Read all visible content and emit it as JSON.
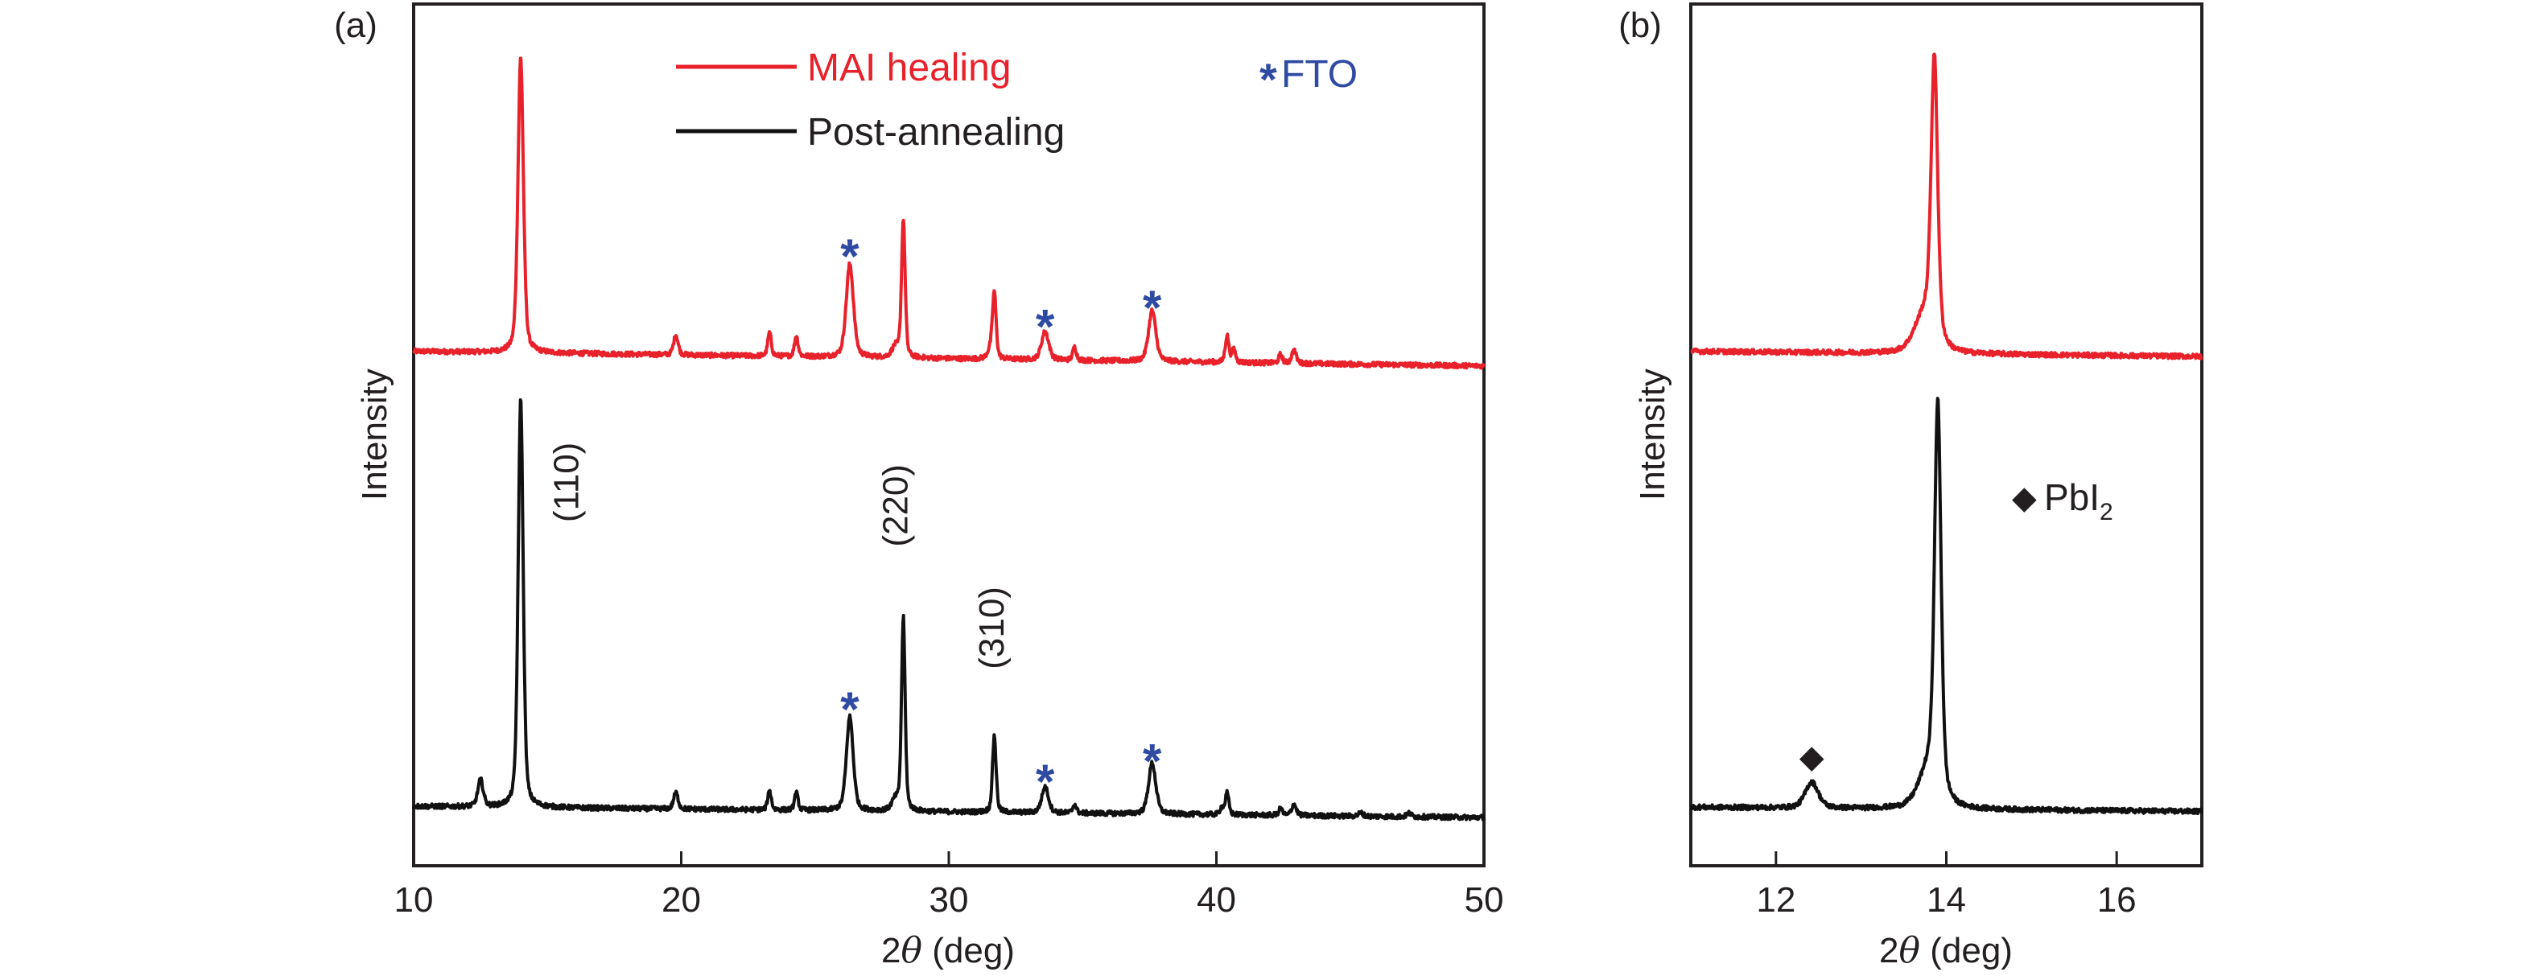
{
  "colors": {
    "mai_healing": "#e8212b",
    "post_annealing": "#111111",
    "fto_marker": "#2e4aa3",
    "axis": "#231f20"
  },
  "chart_data": [
    {
      "id": "a",
      "type": "line",
      "panel_label": "(a)",
      "title": "",
      "xlabel_prefix": "2",
      "xlabel_symbol": "θ",
      "xlabel_suffix": " (deg)",
      "ylabel": "Intensity",
      "xlim": [
        10,
        50
      ],
      "ylim": [
        0,
        100
      ],
      "xticks": [
        10,
        20,
        30,
        40,
        50
      ],
      "xtick_labels": [
        "10",
        "20",
        "30",
        "40",
        "50"
      ],
      "yticks": [],
      "grid": false,
      "legend": {
        "placement": "top-center",
        "entries": [
          {
            "label": "MAI healing",
            "series": "MAI healing"
          },
          {
            "label": "Post-annealing",
            "series": "Post-annealing"
          }
        ]
      },
      "marker_legend": {
        "symbol": "*",
        "label": "FTO",
        "placement": "top-right"
      },
      "series": [
        {
          "name": "MAI healing",
          "color_key": "mai_healing",
          "baseline": [
            59.7,
            58.0
          ],
          "peaks": [
            {
              "x": 14.0,
              "h": 34.3,
              "w": 0.12
            },
            {
              "x": 19.8,
              "h": 2.3,
              "w": 0.1
            },
            {
              "x": 23.3,
              "h": 2.7,
              "w": 0.08
            },
            {
              "x": 24.3,
              "h": 2.4,
              "w": 0.08
            },
            {
              "x": 26.3,
              "h": 10.8,
              "w": 0.16
            },
            {
              "x": 28.0,
              "h": 1.2,
              "w": 0.15
            },
            {
              "x": 28.3,
              "h": 16.0,
              "w": 0.08
            },
            {
              "x": 31.55,
              "h": 1.0,
              "w": 0.12
            },
            {
              "x": 31.7,
              "h": 7.6,
              "w": 0.08
            },
            {
              "x": 33.6,
              "h": 3.3,
              "w": 0.16
            },
            {
              "x": 34.7,
              "h": 1.5,
              "w": 0.08
            },
            {
              "x": 37.6,
              "h": 5.9,
              "w": 0.16
            },
            {
              "x": 40.4,
              "h": 3.1,
              "w": 0.08
            },
            {
              "x": 40.65,
              "h": 1.5,
              "w": 0.08
            },
            {
              "x": 42.4,
              "h": 1.0,
              "w": 0.08
            },
            {
              "x": 42.9,
              "h": 1.5,
              "w": 0.1
            }
          ]
        },
        {
          "name": "Post-annealing",
          "color_key": "post_annealing",
          "baseline": [
            6.9,
            5.6
          ],
          "peaks": [
            {
              "x": 12.5,
              "h": 3.1,
              "w": 0.12
            },
            {
              "x": 14.0,
              "h": 47.4,
              "w": 0.11
            },
            {
              "x": 19.8,
              "h": 1.9,
              "w": 0.1
            },
            {
              "x": 23.3,
              "h": 2.2,
              "w": 0.08
            },
            {
              "x": 24.3,
              "h": 2.0,
              "w": 0.08
            },
            {
              "x": 26.3,
              "h": 10.9,
              "w": 0.15
            },
            {
              "x": 28.0,
              "h": 1.2,
              "w": 0.15
            },
            {
              "x": 28.3,
              "h": 22.4,
              "w": 0.08
            },
            {
              "x": 31.7,
              "h": 8.9,
              "w": 0.08
            },
            {
              "x": 33.6,
              "h": 3.0,
              "w": 0.15
            },
            {
              "x": 34.7,
              "h": 1.0,
              "w": 0.08
            },
            {
              "x": 37.6,
              "h": 5.9,
              "w": 0.16
            },
            {
              "x": 40.4,
              "h": 2.5,
              "w": 0.08
            },
            {
              "x": 40.2,
              "h": 0.8,
              "w": 0.08
            },
            {
              "x": 42.4,
              "h": 0.8,
              "w": 0.08
            },
            {
              "x": 42.9,
              "h": 1.3,
              "w": 0.1
            },
            {
              "x": 45.4,
              "h": 0.4,
              "w": 0.1
            },
            {
              "x": 47.2,
              "h": 0.4,
              "w": 0.1
            }
          ]
        }
      ],
      "annotations": [
        {
          "kind": "fto",
          "text": "*",
          "x": 26.3,
          "y": 72.0
        },
        {
          "kind": "fto",
          "text": "*",
          "x": 33.6,
          "y": 63.8
        },
        {
          "kind": "fto",
          "text": "*",
          "x": 37.6,
          "y": 66.0
        },
        {
          "kind": "fto",
          "text": "*",
          "x": 26.3,
          "y": 19.4
        },
        {
          "kind": "fto",
          "text": "*",
          "x": 33.6,
          "y": 11.0
        },
        {
          "kind": "fto",
          "text": "*",
          "x": 37.6,
          "y": 13.4
        },
        {
          "kind": "hkl",
          "text": "(110)",
          "x": 15.8,
          "y": 44.5
        },
        {
          "kind": "hkl",
          "text": "(220)",
          "x": 28.1,
          "y": 41.8
        },
        {
          "kind": "hkl",
          "text": "(310)",
          "x": 31.7,
          "y": 27.6
        }
      ]
    },
    {
      "id": "b",
      "type": "line",
      "panel_label": "(b)",
      "title": "",
      "xlabel_prefix": "2",
      "xlabel_symbol": "θ",
      "xlabel_suffix": " (deg)",
      "ylabel": "Intensity",
      "xlim": [
        11,
        17
      ],
      "ylim": [
        0,
        100
      ],
      "xticks": [
        12,
        14,
        16
      ],
      "xtick_labels": [
        "12",
        "14",
        "16"
      ],
      "yticks": [],
      "grid": false,
      "marker_legend": {
        "symbol": "◆",
        "label": "PbI",
        "subscript": "2",
        "placement": "center-right"
      },
      "series": [
        {
          "name": "MAI healing",
          "color_key": "mai_healing",
          "baseline": [
            59.7,
            59.1
          ],
          "peaks": [
            {
              "x": 13.86,
              "h": 32.0,
              "w": 0.045
            },
            {
              "x": 13.75,
              "h": 4.5,
              "w": 0.14
            }
          ]
        },
        {
          "name": "Post-annealing",
          "color_key": "post_annealing",
          "baseline": [
            6.8,
            6.3
          ],
          "peaks": [
            {
              "x": 12.42,
              "h": 3.0,
              "w": 0.09
            },
            {
              "x": 13.9,
              "h": 44.5,
              "w": 0.045
            },
            {
              "x": 13.8,
              "h": 4.5,
              "w": 0.14
            }
          ]
        }
      ],
      "annotations": [
        {
          "kind": "pbi2",
          "text": "◆",
          "x": 12.42,
          "y": 12.7
        }
      ]
    }
  ]
}
